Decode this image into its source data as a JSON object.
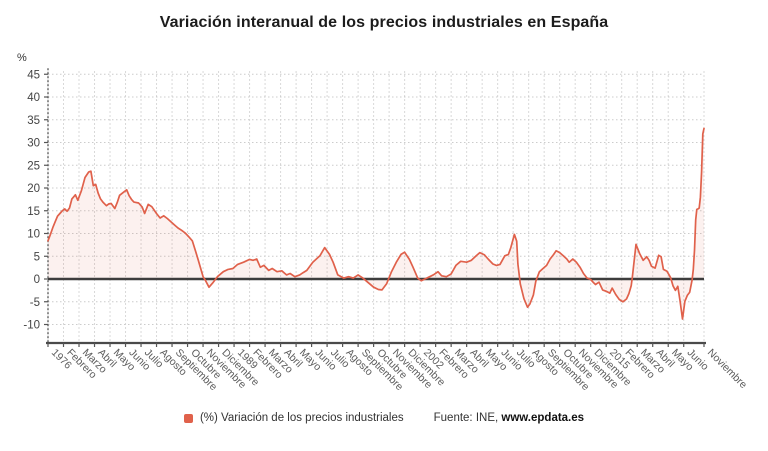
{
  "title": "Variación interanual de los precios industriales en España",
  "y_axis_unit": "%",
  "legend": {
    "label": "(%) Variación de los precios industriales"
  },
  "source": {
    "prefix": "Fuente: INE,",
    "site": "www.epdata.es"
  },
  "colors": {
    "series": "#e0614b",
    "area_fill": "rgba(224,97,75,0.09)",
    "zero_line": "#3d3d3d",
    "axis_line": "#4a4a4a",
    "grid_line": "#cccccc",
    "y_label": "#444444",
    "x_label": "#5c5c5c"
  },
  "chart_data": {
    "type": "area",
    "title": "Variación interanual de los precios industriales en España",
    "ylabel": "%",
    "ylim": [
      -10,
      45
    ],
    "grid": true,
    "legend_position": "bottom",
    "x_unit": "months since Jan 1976 (monthly series, Jan 1976 - Nov 2021)",
    "x_range": [
      0,
      550
    ],
    "y_ticks": [
      45,
      40,
      35,
      30,
      25,
      20,
      15,
      10,
      5,
      0,
      -5,
      -10
    ],
    "x_ticks": [
      {
        "m": 0,
        "label": "1976"
      },
      {
        "m": 13,
        "label": "Febrero"
      },
      {
        "m": 26,
        "label": "Marzo"
      },
      {
        "m": 39,
        "label": "Abril"
      },
      {
        "m": 52,
        "label": "Mayo"
      },
      {
        "m": 65,
        "label": "Junio"
      },
      {
        "m": 78,
        "label": "Julio"
      },
      {
        "m": 91,
        "label": "Agosto"
      },
      {
        "m": 104,
        "label": "Septiembre"
      },
      {
        "m": 117,
        "label": "Octubre"
      },
      {
        "m": 130,
        "label": "Noviembre"
      },
      {
        "m": 143,
        "label": "Diciembre"
      },
      {
        "m": 156,
        "label": "1989"
      },
      {
        "m": 169,
        "label": "Febrero"
      },
      {
        "m": 182,
        "label": "Marzo"
      },
      {
        "m": 195,
        "label": "Abril"
      },
      {
        "m": 208,
        "label": "Mayo"
      },
      {
        "m": 221,
        "label": "Junio"
      },
      {
        "m": 234,
        "label": "Julio"
      },
      {
        "m": 247,
        "label": "Agosto"
      },
      {
        "m": 260,
        "label": "Septiembre"
      },
      {
        "m": 273,
        "label": "Octubre"
      },
      {
        "m": 286,
        "label": "Noviembre"
      },
      {
        "m": 299,
        "label": "Diciembre"
      },
      {
        "m": 312,
        "label": "2002"
      },
      {
        "m": 325,
        "label": "Febrero"
      },
      {
        "m": 338,
        "label": "Marzo"
      },
      {
        "m": 351,
        "label": "Abril"
      },
      {
        "m": 364,
        "label": "Mayo"
      },
      {
        "m": 377,
        "label": "Junio"
      },
      {
        "m": 390,
        "label": "Julio"
      },
      {
        "m": 403,
        "label": "Agosto"
      },
      {
        "m": 416,
        "label": "Septiembre"
      },
      {
        "m": 429,
        "label": "Octubre"
      },
      {
        "m": 442,
        "label": "Noviembre"
      },
      {
        "m": 455,
        "label": "Diciembre"
      },
      {
        "m": 468,
        "label": "2015"
      },
      {
        "m": 481,
        "label": "Febrero"
      },
      {
        "m": 494,
        "label": "Marzo"
      },
      {
        "m": 507,
        "label": "Abril"
      },
      {
        "m": 520,
        "label": "Mayo"
      },
      {
        "m": 533,
        "label": "Junio"
      },
      {
        "m": 550,
        "label": "Noviembre"
      }
    ],
    "series": [
      {
        "name": "(%) Variación de los precios industriales",
        "color": "#e0614b",
        "points_month_value": [
          [
            0,
            8.4
          ],
          [
            2,
            9.8
          ],
          [
            4,
            11.3
          ],
          [
            6,
            12.6
          ],
          [
            8,
            13.8
          ],
          [
            10,
            14.4
          ],
          [
            12,
            15.0
          ],
          [
            14,
            15.4
          ],
          [
            16,
            14.9
          ],
          [
            18,
            15.6
          ],
          [
            20,
            17.6
          ],
          [
            23,
            18.5
          ],
          [
            25,
            17.3
          ],
          [
            28,
            19.4
          ],
          [
            31,
            22.3
          ],
          [
            34,
            23.5
          ],
          [
            36,
            23.7
          ],
          [
            38,
            20.5
          ],
          [
            40,
            20.8
          ],
          [
            42,
            18.9
          ],
          [
            44,
            17.6
          ],
          [
            46,
            16.9
          ],
          [
            49,
            16.1
          ],
          [
            51,
            16.5
          ],
          [
            53,
            16.6
          ],
          [
            56,
            15.5
          ],
          [
            58,
            16.8
          ],
          [
            60,
            18.4
          ],
          [
            63,
            19.0
          ],
          [
            66,
            19.6
          ],
          [
            68,
            18.3
          ],
          [
            70,
            17.5
          ],
          [
            72,
            16.9
          ],
          [
            76,
            16.7
          ],
          [
            79,
            15.8
          ],
          [
            81,
            14.4
          ],
          [
            84,
            16.4
          ],
          [
            87,
            15.9
          ],
          [
            91,
            14.4
          ],
          [
            94,
            13.4
          ],
          [
            97,
            13.9
          ],
          [
            100,
            13.3
          ],
          [
            103,
            12.6
          ],
          [
            106,
            11.9
          ],
          [
            109,
            11.2
          ],
          [
            112,
            10.7
          ],
          [
            115,
            10.1
          ],
          [
            118,
            9.3
          ],
          [
            121,
            8.4
          ],
          [
            124,
            5.9
          ],
          [
            126,
            4.1
          ],
          [
            128,
            2.3
          ],
          [
            130,
            0.5
          ],
          [
            132,
            -0.3
          ],
          [
            135,
            -1.8
          ],
          [
            138,
            -0.9
          ],
          [
            142,
            0.5
          ],
          [
            147,
            1.6
          ],
          [
            151,
            2.1
          ],
          [
            155,
            2.3
          ],
          [
            159,
            3.2
          ],
          [
            164,
            3.7
          ],
          [
            169,
            4.3
          ],
          [
            172,
            4.1
          ],
          [
            175,
            4.4
          ],
          [
            178,
            2.6
          ],
          [
            181,
            3.0
          ],
          [
            185,
            1.9
          ],
          [
            188,
            2.3
          ],
          [
            192,
            1.6
          ],
          [
            196,
            1.8
          ],
          [
            200,
            0.9
          ],
          [
            203,
            1.2
          ],
          [
            207,
            0.5
          ],
          [
            211,
            0.9
          ],
          [
            214,
            1.4
          ],
          [
            217,
            1.9
          ],
          [
            222,
            3.7
          ],
          [
            228,
            5.1
          ],
          [
            232,
            6.9
          ],
          [
            236,
            5.4
          ],
          [
            239,
            3.7
          ],
          [
            243,
            0.9
          ],
          [
            248,
            0.2
          ],
          [
            252,
            0.5
          ],
          [
            256,
            0.2
          ],
          [
            260,
            0.9
          ],
          [
            264,
            0.2
          ],
          [
            268,
            -0.7
          ],
          [
            273,
            -1.8
          ],
          [
            277,
            -2.3
          ],
          [
            280,
            -2.4
          ],
          [
            284,
            -1.0
          ],
          [
            288,
            1.6
          ],
          [
            292,
            3.7
          ],
          [
            296,
            5.4
          ],
          [
            299,
            5.9
          ],
          [
            303,
            4.3
          ],
          [
            306,
            2.6
          ],
          [
            310,
            0.2
          ],
          [
            313,
            -0.4
          ],
          [
            316,
            0.0
          ],
          [
            320,
            0.5
          ],
          [
            323,
            0.9
          ],
          [
            327,
            1.6
          ],
          [
            330,
            0.7
          ],
          [
            334,
            0.5
          ],
          [
            338,
            1.1
          ],
          [
            342,
            3.0
          ],
          [
            346,
            3.9
          ],
          [
            351,
            3.7
          ],
          [
            355,
            4.1
          ],
          [
            359,
            5.1
          ],
          [
            362,
            5.8
          ],
          [
            366,
            5.3
          ],
          [
            369,
            4.4
          ],
          [
            373,
            3.3
          ],
          [
            376,
            3.0
          ],
          [
            379,
            3.2
          ],
          [
            383,
            5.1
          ],
          [
            386,
            5.4
          ],
          [
            388,
            6.9
          ],
          [
            391,
            9.8
          ],
          [
            393,
            8.3
          ],
          [
            394,
            3.3
          ],
          [
            396,
            -1.1
          ],
          [
            399,
            -4.3
          ],
          [
            402,
            -6.2
          ],
          [
            404,
            -5.5
          ],
          [
            407,
            -3.5
          ],
          [
            409,
            -0.5
          ],
          [
            412,
            1.6
          ],
          [
            415,
            2.3
          ],
          [
            418,
            3.0
          ],
          [
            421,
            4.4
          ],
          [
            424,
            5.4
          ],
          [
            426,
            6.2
          ],
          [
            429,
            5.8
          ],
          [
            432,
            5.1
          ],
          [
            435,
            4.4
          ],
          [
            437,
            3.7
          ],
          [
            440,
            4.4
          ],
          [
            443,
            3.7
          ],
          [
            446,
            2.6
          ],
          [
            449,
            1.2
          ],
          [
            452,
            0.2
          ],
          [
            455,
            -0.1
          ],
          [
            457,
            -0.7
          ],
          [
            459,
            -1.2
          ],
          [
            462,
            -0.7
          ],
          [
            465,
            -2.4
          ],
          [
            468,
            -2.7
          ],
          [
            471,
            -3.1
          ],
          [
            473,
            -2.0
          ],
          [
            476,
            -3.4
          ],
          [
            479,
            -4.5
          ],
          [
            482,
            -5.0
          ],
          [
            485,
            -4.4
          ],
          [
            487,
            -3.2
          ],
          [
            489,
            -1.5
          ],
          [
            490,
            0.5
          ],
          [
            491,
            2.9
          ],
          [
            493,
            7.6
          ],
          [
            496,
            5.6
          ],
          [
            499,
            4.1
          ],
          [
            502,
            4.9
          ],
          [
            504,
            4.1
          ],
          [
            506,
            2.8
          ],
          [
            509,
            2.4
          ],
          [
            512,
            5.2
          ],
          [
            514,
            4.9
          ],
          [
            516,
            2.1
          ],
          [
            519,
            1.7
          ],
          [
            522,
            0.3
          ],
          [
            524,
            -1.5
          ],
          [
            526,
            -2.5
          ],
          [
            528,
            -1.6
          ],
          [
            530,
            -4.9
          ],
          [
            532,
            -8.8
          ],
          [
            534,
            -4.9
          ],
          [
            536,
            -3.6
          ],
          [
            538,
            -2.9
          ],
          [
            540,
            -0.2
          ],
          [
            541,
            2.1
          ],
          [
            542,
            6.3
          ],
          [
            543,
            13.0
          ],
          [
            544,
            15.3
          ],
          [
            545,
            15.4
          ],
          [
            546,
            15.6
          ],
          [
            547,
            18.0
          ],
          [
            548,
            23.6
          ],
          [
            549,
            31.9
          ],
          [
            550,
            33.1
          ]
        ]
      }
    ]
  }
}
